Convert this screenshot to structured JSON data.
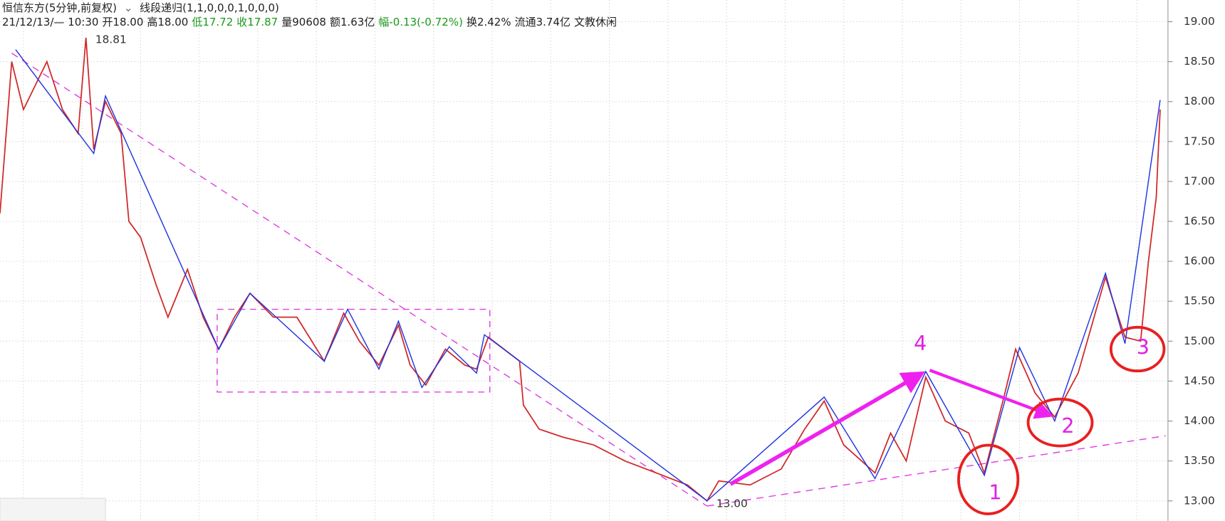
{
  "chart_data": {
    "type": "line",
    "title": "恒信东方(5分钟,前复权)",
    "indicator": "线段递归(1,1,0,0,0,1,0,0,0)",
    "info": [
      "21/12/13/— 10:30",
      "开18.00",
      "高18.00",
      "低17.72",
      "收17.87",
      "量90608",
      "额1.63亿",
      "幅-0.13(-0.72%)",
      "换2.42%",
      "流通3.74亿",
      "文教休闲"
    ],
    "xlim": [
      0,
      299
    ],
    "ylim": [
      12.75,
      19.27
    ],
    "yticks": [
      {
        "value": 13,
        "label": "13.00"
      },
      {
        "value": 13.5,
        "label": "13.50"
      },
      {
        "value": 14,
        "label": "14.00"
      },
      {
        "value": 14.5,
        "label": "14.50"
      },
      {
        "value": 15,
        "label": "15.00"
      },
      {
        "value": 15.5,
        "label": "15.50"
      },
      {
        "value": 16,
        "label": "16.00"
      },
      {
        "value": 16.5,
        "label": "16.50"
      },
      {
        "value": 17,
        "label": "17.00"
      },
      {
        "value": 17.5,
        "label": "17.50"
      },
      {
        "value": 18,
        "label": "18.00"
      },
      {
        "value": 18.5,
        "label": "18.50"
      },
      {
        "value": 19,
        "label": "19.00"
      }
    ],
    "grid": true,
    "series": [
      {
        "color": "#d02828",
        "x": [
          0,
          3,
          6,
          12,
          16,
          20,
          22,
          24,
          27,
          31,
          33,
          36,
          40,
          43,
          48,
          52,
          56,
          60,
          64,
          70,
          76,
          83,
          88,
          92,
          97,
          102,
          105,
          109,
          114,
          119,
          122,
          125,
          133,
          134,
          138,
          144,
          152,
          160,
          168,
          176,
          181,
          184,
          192,
          200,
          206,
          211,
          216,
          224,
          228,
          232,
          237,
          242,
          248,
          252,
          257,
          260,
          265,
          270,
          276,
          283,
          288,
          292,
          294,
          296,
          297
        ],
        "values": [
          16.6,
          18.5,
          17.9,
          18.5,
          17.9,
          17.6,
          18.8,
          17.4,
          18.0,
          17.6,
          16.5,
          16.3,
          15.7,
          15.3,
          15.9,
          15.3,
          14.9,
          15.3,
          15.6,
          15.3,
          15.3,
          14.75,
          15.35,
          15.0,
          14.7,
          15.2,
          14.7,
          14.45,
          14.9,
          14.7,
          14.65,
          15.05,
          14.75,
          14.2,
          13.9,
          13.8,
          13.7,
          13.5,
          13.35,
          13.2,
          13.0,
          13.25,
          13.2,
          13.4,
          13.9,
          14.25,
          13.7,
          13.35,
          13.85,
          13.5,
          14.55,
          14.0,
          13.85,
          13.35,
          14.3,
          14.9,
          14.35,
          14.05,
          14.6,
          15.8,
          15.05,
          15.0,
          16.0,
          16.8,
          17.9
        ]
      },
      {
        "color": "#2035e0",
        "x": [
          4,
          24,
          27,
          56,
          64,
          83,
          89,
          97,
          102,
          108,
          115,
          122,
          124,
          181,
          211,
          224,
          237,
          252,
          261,
          270,
          283,
          288,
          297
        ],
        "values": [
          18.65,
          17.35,
          18.07,
          14.9,
          15.6,
          14.75,
          15.4,
          14.65,
          15.25,
          14.42,
          14.93,
          14.6,
          15.08,
          13.0,
          14.3,
          13.28,
          14.62,
          13.32,
          14.92,
          14.0,
          15.85,
          14.97,
          18.02
        ]
      }
    ],
    "annotations": [
      {
        "text": "18.81",
        "x": 22,
        "y": 18.81
      },
      {
        "text": "13.00",
        "x": 181,
        "y": 13.0
      }
    ],
    "labels": [
      "1",
      "2",
      "3",
      "4"
    ]
  }
}
